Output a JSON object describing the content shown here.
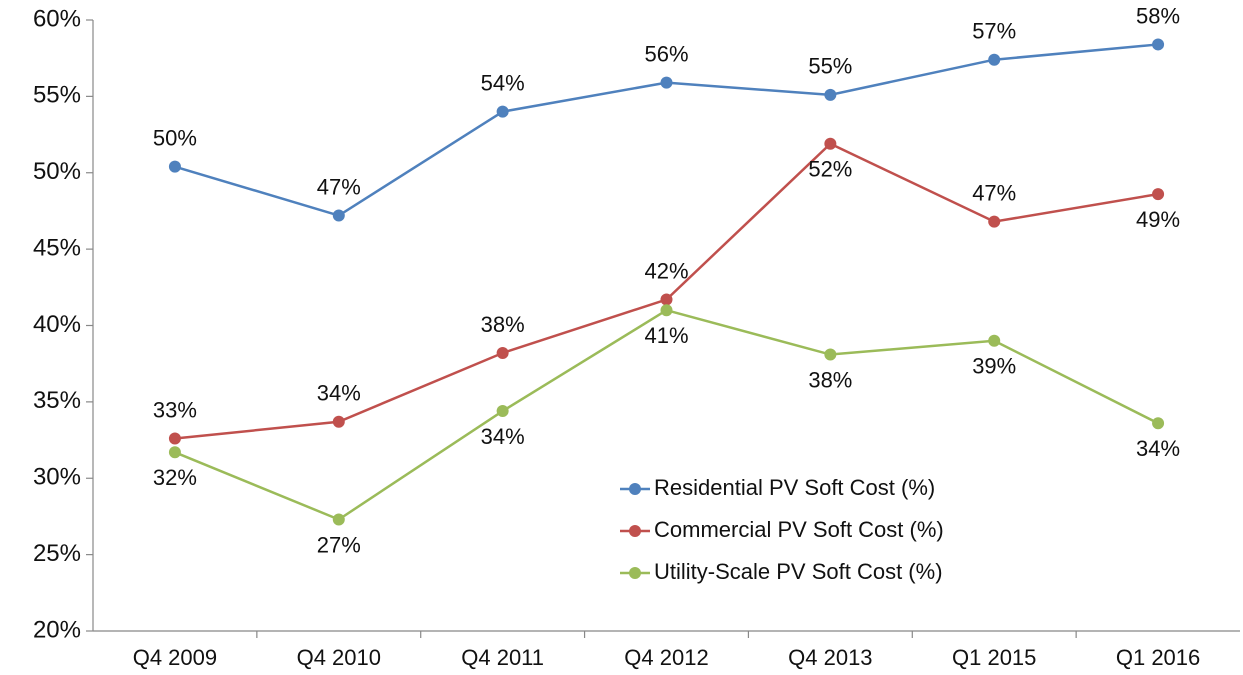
{
  "chart_data": {
    "type": "line",
    "categories": [
      "Q4 2009",
      "Q4 2010",
      "Q4 2011",
      "Q4 2012",
      "Q4 2013",
      "Q1 2015",
      "Q1 2016"
    ],
    "series": [
      {
        "name": "Residential PV Soft Cost (%)",
        "color": "#4f81bd",
        "values": [
          50.4,
          47.2,
          54.0,
          55.9,
          55.1,
          57.4,
          58.4
        ],
        "value_labels": [
          "50%",
          "47%",
          "54%",
          "56%",
          "55%",
          "57%",
          "58%"
        ]
      },
      {
        "name": "Commercial PV Soft Cost (%)",
        "color": "#c0504d",
        "values": [
          32.6,
          33.7,
          38.2,
          41.7,
          51.9,
          46.8,
          48.6
        ],
        "value_labels": [
          "33%",
          "34%",
          "38%",
          "42%",
          "52%",
          "47%",
          "49%"
        ]
      },
      {
        "name": "Utility-Scale PV Soft Cost (%)",
        "color": "#9bbb59",
        "values": [
          31.7,
          27.3,
          34.4,
          41.0,
          38.1,
          39.0,
          33.6
        ],
        "value_labels": [
          "32%",
          "27%",
          "34%",
          "41%",
          "38%",
          "39%",
          "34%"
        ]
      }
    ],
    "ylim": [
      20,
      60
    ],
    "yticks": [
      {
        "value": 20,
        "label": "20%"
      },
      {
        "value": 25,
        "label": "25%"
      },
      {
        "value": 30,
        "label": "30%"
      },
      {
        "value": 35,
        "label": "35%"
      },
      {
        "value": 40,
        "label": "40%"
      },
      {
        "value": 45,
        "label": "45%"
      },
      {
        "value": 50,
        "label": "50%"
      },
      {
        "value": 55,
        "label": "55%"
      },
      {
        "value": 60,
        "label": "60%"
      }
    ],
    "grid": false,
    "legend": "lower-right"
  }
}
